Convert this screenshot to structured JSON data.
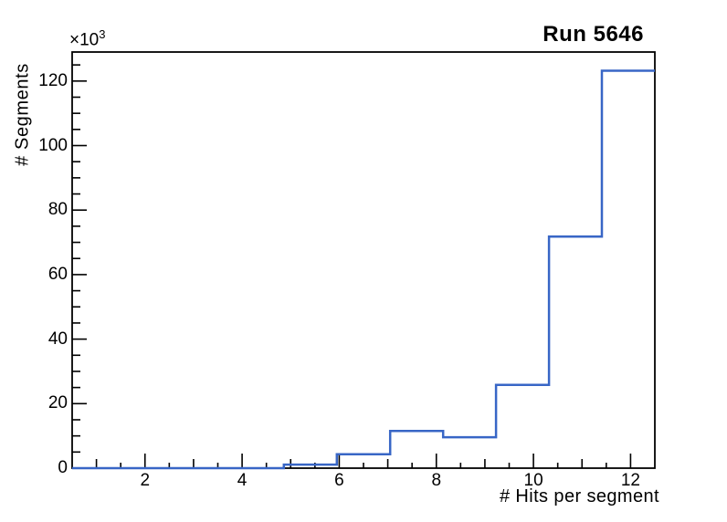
{
  "page": {
    "background_color": "#ffffff",
    "text_color": "#000000"
  },
  "chart_data": {
    "type": "bar",
    "style": "root-step-histogram",
    "title": "Run 5646",
    "xlabel": "# Hits per segment",
    "ylabel": "# Segments",
    "y_exponent_base": "×10",
    "y_exponent_power": "3",
    "bin_edges": [
      0.5,
      1.59,
      2.68,
      3.77,
      4.86,
      5.95,
      7.05,
      8.14,
      9.23,
      10.32,
      11.41,
      12.5
    ],
    "counts": [
      0,
      0,
      0,
      0,
      1100,
      4300,
      11500,
      9600,
      25800,
      71800,
      123200
    ],
    "xlim": [
      0.5,
      12.5
    ],
    "ylim": [
      0,
      129000
    ],
    "x_major_tick_values": [
      2,
      4,
      6,
      8,
      10,
      12
    ],
    "x_major_tick_labels": [
      "2",
      "4",
      "6",
      "8",
      "10",
      "12"
    ],
    "x_medium_tick_values": [
      1,
      3,
      5,
      7,
      9,
      11
    ],
    "x_minor_step": 0.5,
    "y_major_tick_values": [
      0,
      20000,
      40000,
      60000,
      80000,
      100000,
      120000
    ],
    "y_major_tick_labels": [
      "0",
      "20",
      "40",
      "60",
      "80",
      "100",
      "120"
    ],
    "y_minor_step": 5000,
    "grid": false,
    "legend": null,
    "line_color": "#3866c6",
    "axis_color": "#000000"
  }
}
